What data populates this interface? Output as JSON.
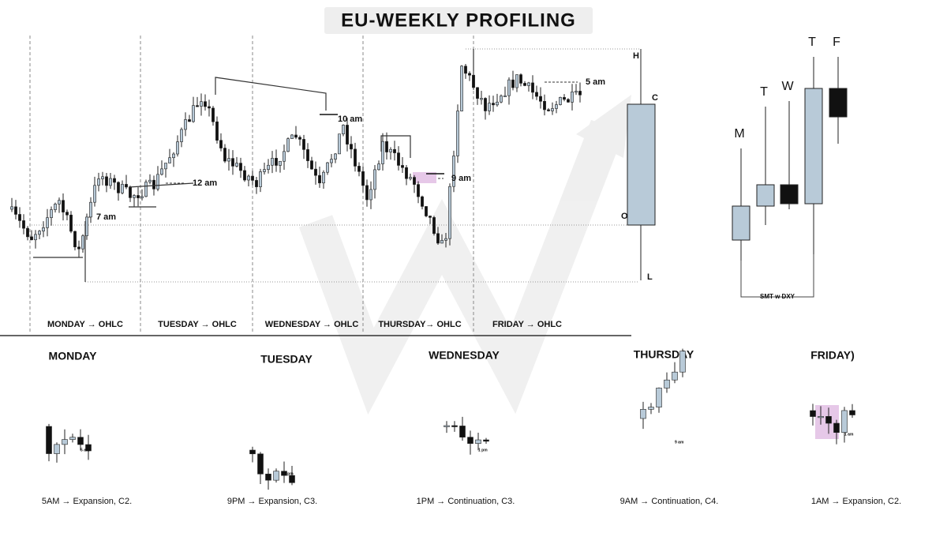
{
  "title": "EU-WEEKLY PROFILING",
  "main_chart": {
    "session_labels": [
      "MONDAY → OHLC",
      "TUESDAY → OHLC",
      "WEDNESDAY → OHLC",
      "THURSDAY→ OHLC",
      "FRIDAY → OHLC"
    ],
    "time_labels": [
      "7 am",
      "12 am",
      "10 am",
      "9 am",
      "5 am"
    ],
    "range_labels": {
      "high": "H",
      "close": "C",
      "open": "O",
      "low": "L"
    }
  },
  "weekly_candles": {
    "labels": [
      "M",
      "T",
      "W",
      "T",
      "F"
    ],
    "note": "SMT w DXY"
  },
  "day_panels": [
    {
      "day": "MONDAY",
      "time": "5 am",
      "caption": "5AM →  Expansion, C2."
    },
    {
      "day": "TUESDAY",
      "time": "9 pm",
      "caption": "9PM → Expansion, C3."
    },
    {
      "day": "WEDNESDAY",
      "time": "1 pm",
      "caption": "1PM → Continuation, C3."
    },
    {
      "day": "THURSDAY",
      "time": "9 am",
      "caption": "9AM → Continuation, C4."
    },
    {
      "day": "FRIDAY)",
      "time": "1 am",
      "caption": "1AM → Expansion, C2."
    }
  ]
}
